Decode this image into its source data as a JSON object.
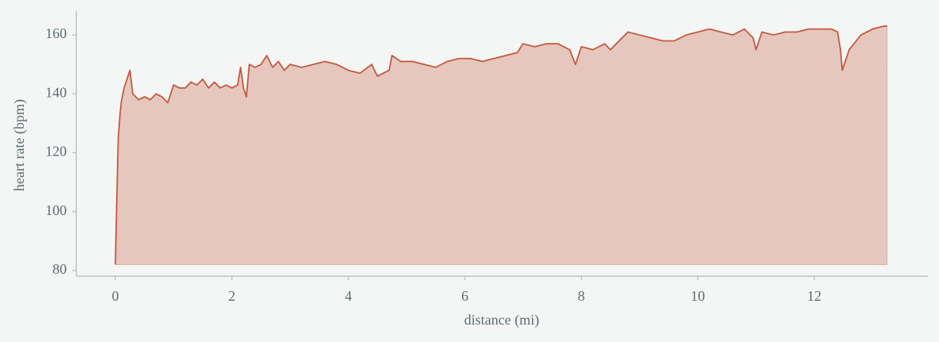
{
  "chart_data": {
    "type": "area",
    "xlabel": "distance (mi)",
    "ylabel": "heart rate (bpm)",
    "color": "#c5593f",
    "x": [
      0,
      0.02,
      0.05,
      0.08,
      0.1,
      0.15,
      0.2,
      0.25,
      0.3,
      0.4,
      0.5,
      0.6,
      0.7,
      0.8,
      0.9,
      1.0,
      1.1,
      1.2,
      1.3,
      1.4,
      1.5,
      1.6,
      1.7,
      1.8,
      1.9,
      2.0,
      2.1,
      2.15,
      2.2,
      2.25,
      2.3,
      2.4,
      2.5,
      2.6,
      2.7,
      2.8,
      2.9,
      3.0,
      3.2,
      3.4,
      3.6,
      3.8,
      4.0,
      4.2,
      4.4,
      4.5,
      4.6,
      4.7,
      4.75,
      4.9,
      5.1,
      5.3,
      5.5,
      5.7,
      5.9,
      6.1,
      6.3,
      6.5,
      6.7,
      6.9,
      7.0,
      7.2,
      7.4,
      7.6,
      7.8,
      7.9,
      8.0,
      8.2,
      8.4,
      8.5,
      8.6,
      8.8,
      9.0,
      9.2,
      9.4,
      9.6,
      9.8,
      10.0,
      10.2,
      10.4,
      10.6,
      10.8,
      10.95,
      11.0,
      11.1,
      11.3,
      11.5,
      11.7,
      11.9,
      12.1,
      12.3,
      12.4,
      12.45,
      12.48,
      12.6,
      12.8,
      13.0,
      13.2,
      13.25
    ],
    "values": [
      82,
      100,
      125,
      133,
      137,
      142,
      145,
      148,
      140,
      138,
      139,
      138,
      140,
      139,
      137,
      143,
      142,
      142,
      144,
      143,
      145,
      142,
      144,
      142,
      143,
      142,
      143,
      149,
      142,
      139,
      150,
      149,
      150,
      153,
      149,
      151,
      148,
      150,
      149,
      150,
      151,
      150,
      148,
      147,
      150,
      146,
      147,
      148,
      153,
      151,
      151,
      150,
      149,
      151,
      152,
      152,
      151,
      152,
      153,
      154,
      157,
      156,
      157,
      157,
      155,
      150,
      156,
      155,
      157,
      155,
      157,
      161,
      160,
      159,
      158,
      158,
      160,
      161,
      162,
      161,
      160,
      162,
      159,
      155,
      161,
      160,
      161,
      161,
      162,
      162,
      162,
      161,
      155,
      148,
      155,
      160,
      162,
      163,
      163
    ],
    "xlim": [
      -0.67,
      13.95
    ],
    "ylim": [
      78.1,
      168.1
    ],
    "xticks": [
      0,
      2,
      4,
      6,
      8,
      10,
      12
    ],
    "yticks": [
      80,
      100,
      120,
      140,
      160
    ]
  }
}
